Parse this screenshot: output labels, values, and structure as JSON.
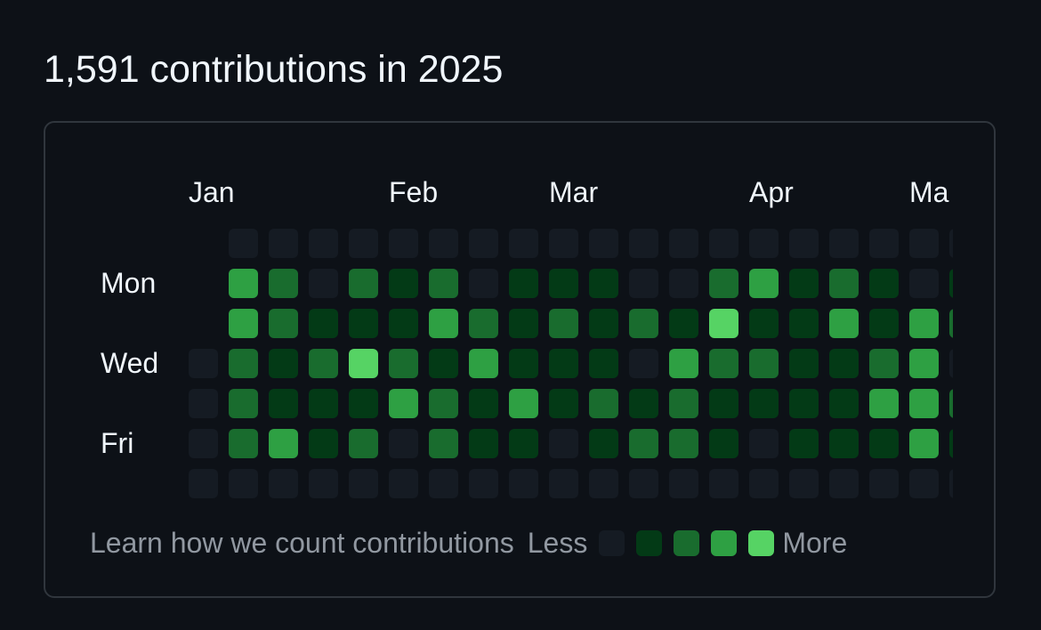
{
  "header": {
    "title": "1,591 contributions in 2025"
  },
  "graph": {
    "months": [
      {
        "label": "Jan",
        "week": 0
      },
      {
        "label": "Feb",
        "week": 5
      },
      {
        "label": "Mar",
        "week": 9
      },
      {
        "label": "Apr",
        "week": 14
      },
      {
        "label": "Ma",
        "week": 18
      }
    ],
    "day_labels": [
      {
        "label": "Mon",
        "row": 1
      },
      {
        "label": "Wed",
        "row": 3
      },
      {
        "label": "Fri",
        "row": 5
      }
    ],
    "levels": [
      [
        -1,
        0,
        0,
        0,
        0,
        0,
        0,
        0,
        0,
        0,
        0,
        0,
        0,
        0,
        0,
        0,
        0,
        0,
        0,
        0
      ],
      [
        -1,
        3,
        2,
        0,
        2,
        1,
        2,
        0,
        1,
        1,
        1,
        0,
        0,
        2,
        3,
        1,
        2,
        1,
        0,
        1
      ],
      [
        -1,
        3,
        2,
        1,
        1,
        1,
        3,
        2,
        1,
        2,
        1,
        2,
        1,
        4,
        1,
        1,
        3,
        1,
        3,
        2
      ],
      [
        0,
        2,
        1,
        2,
        4,
        2,
        1,
        3,
        1,
        1,
        1,
        0,
        3,
        2,
        2,
        1,
        1,
        2,
        3,
        0
      ],
      [
        0,
        2,
        1,
        1,
        1,
        3,
        2,
        1,
        3,
        1,
        2,
        1,
        2,
        1,
        1,
        1,
        1,
        3,
        3,
        2
      ],
      [
        0,
        2,
        3,
        1,
        2,
        0,
        2,
        1,
        1,
        0,
        1,
        2,
        2,
        1,
        0,
        1,
        1,
        1,
        3,
        1
      ],
      [
        0,
        0,
        0,
        0,
        0,
        0,
        0,
        0,
        0,
        0,
        0,
        0,
        0,
        0,
        0,
        0,
        0,
        0,
        0,
        0
      ]
    ],
    "colors": [
      "#151b23",
      "#033a16",
      "#196c2e",
      "#2ea043",
      "#56d364"
    ]
  },
  "footer": {
    "link_label": "Learn how we count contributions",
    "less_label": "Less",
    "more_label": "More"
  }
}
